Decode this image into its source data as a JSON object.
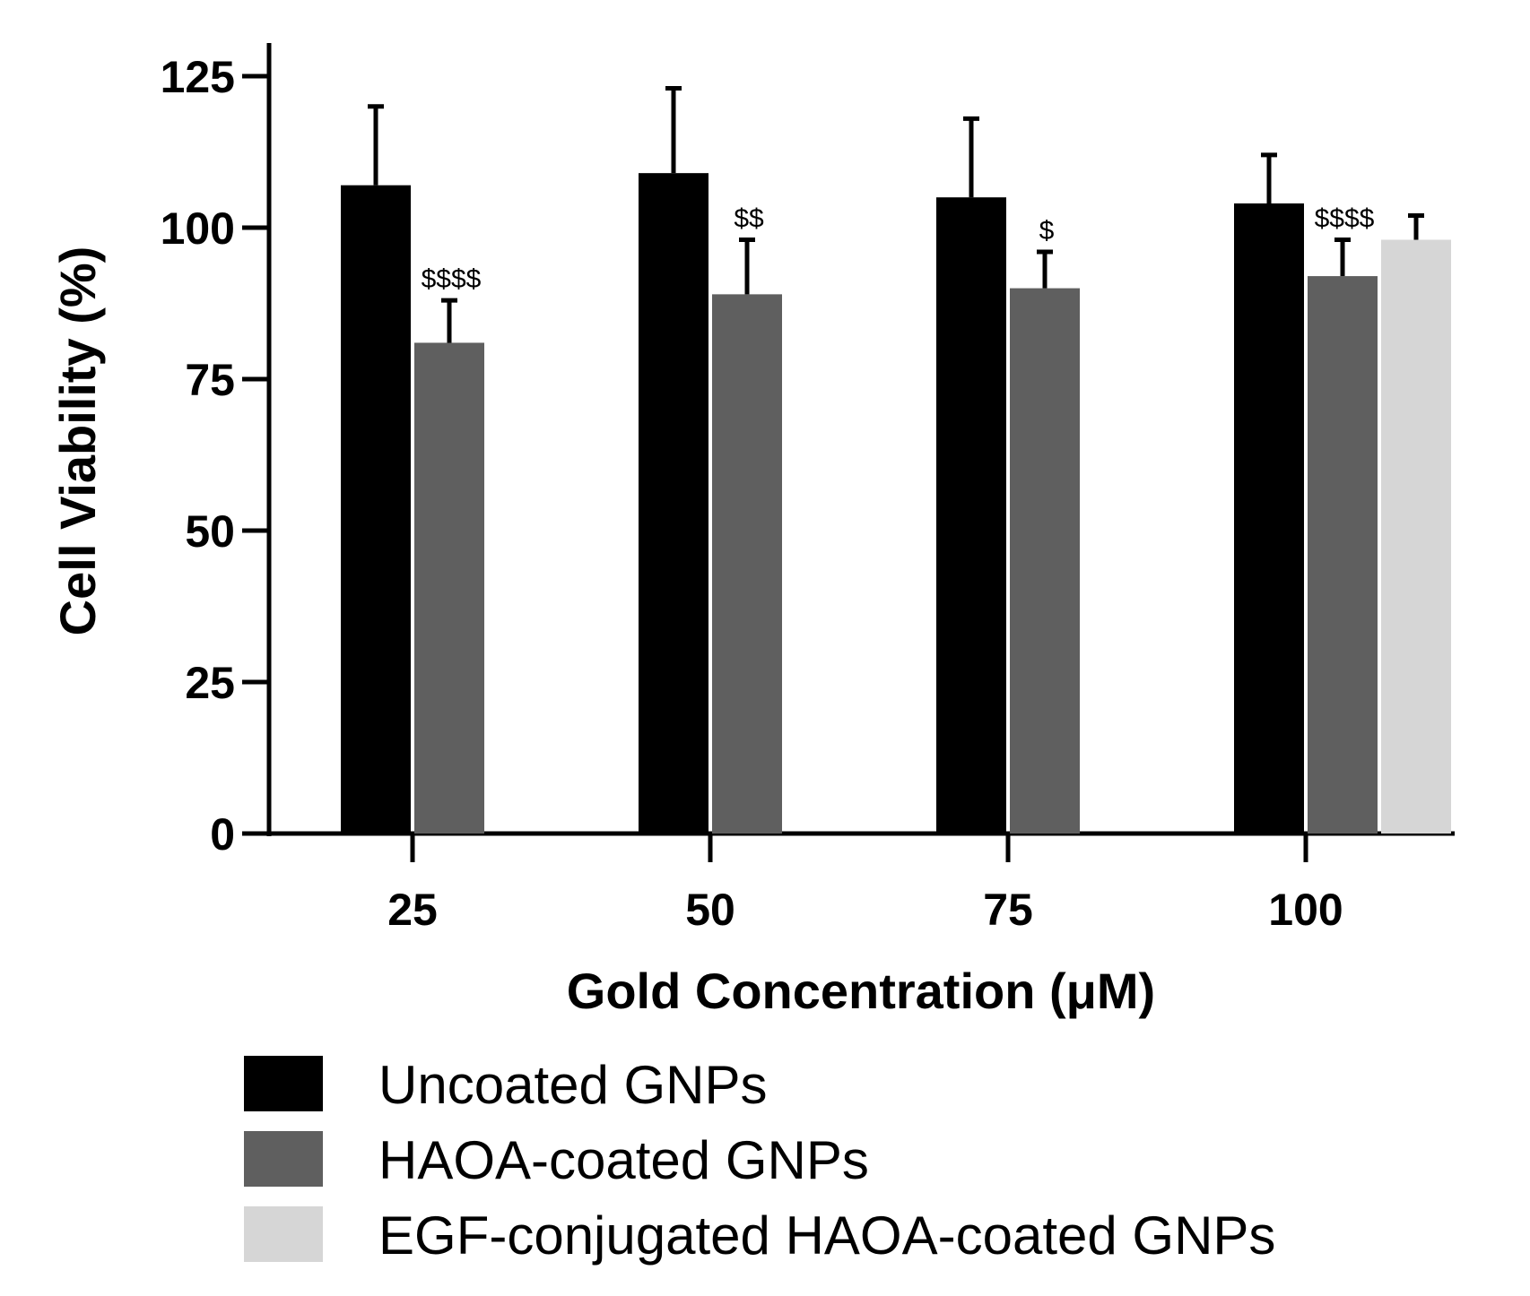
{
  "chart_data": {
    "type": "bar",
    "title": "",
    "xlabel": "Gold Concentration (μM)",
    "ylabel": "Cell Viability (%)",
    "ylim": [
      0,
      125
    ],
    "yticks": [
      "0",
      "25",
      "50",
      "75",
      "100",
      "125"
    ],
    "categories": [
      "25",
      "50",
      "75",
      "100"
    ],
    "series": [
      {
        "name": "Uncoated GNPs",
        "color": "#000000",
        "values": [
          107,
          109,
          105,
          104
        ],
        "errors": [
          13,
          14,
          13,
          8
        ],
        "annotations": [
          "",
          "",
          "",
          ""
        ]
      },
      {
        "name": "HAOA-coated GNPs",
        "color": "#5f5f5f",
        "values": [
          81,
          89,
          90,
          92
        ],
        "errors": [
          7,
          9,
          6,
          6
        ],
        "annotations": [
          "$$$$",
          "$$",
          "$",
          "$$$$"
        ]
      },
      {
        "name": "EGF-conjugated HAOA-coated GNPs",
        "color": "#d6d6d6",
        "values": [
          null,
          null,
          null,
          98
        ],
        "errors": [
          null,
          null,
          null,
          4
        ],
        "annotations": [
          "",
          "",
          "",
          ""
        ]
      }
    ],
    "legend_position": "bottom-left"
  }
}
